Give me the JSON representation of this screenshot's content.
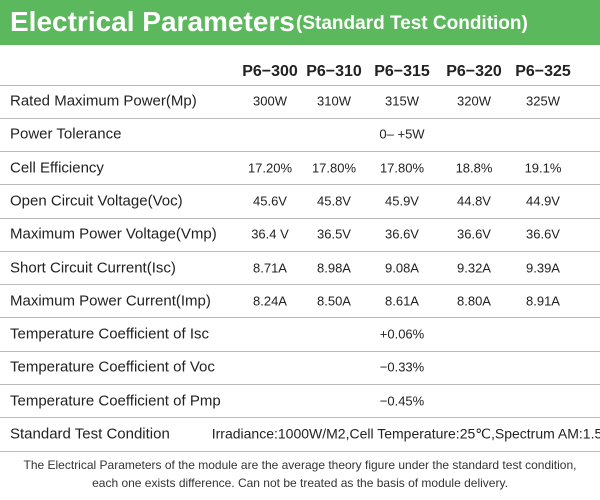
{
  "header": {
    "title": "Electrical Parameters",
    "subtitle": "(Standard Test Condition)"
  },
  "table": {
    "columns": [
      "P6−300",
      "P6−310",
      "P6−315",
      "P6−320",
      "P6−325"
    ],
    "rows": [
      {
        "label": "Rated Maximum Power(Mp)",
        "values": [
          "300W",
          "310W",
          "315W",
          "320W",
          "325W"
        ]
      },
      {
        "label": "Power Tolerance",
        "value": "0– +5W"
      },
      {
        "label": "Cell Efficiency",
        "values": [
          "17.20%",
          "17.80%",
          "17.80%",
          "18.8%",
          "19.1%"
        ]
      },
      {
        "label": "Open Circuit Voltage(Voc)",
        "values": [
          "45.6V",
          "45.8V",
          "45.9V",
          "44.8V",
          "44.9V"
        ]
      },
      {
        "label": "Maximum Power Voltage(Vmp)",
        "values": [
          "36.4 V",
          "36.5V",
          "36.6V",
          "36.6V",
          "36.6V"
        ]
      },
      {
        "label": "Short Circuit Current(Isc)",
        "values": [
          "8.71A",
          "8.98A",
          "9.08A",
          "9.32A",
          "9.39A"
        ]
      },
      {
        "label": "Maximum Power Current(Imp)",
        "values": [
          "8.24A",
          "8.50A",
          "8.61A",
          "8.80A",
          "8.91A"
        ]
      },
      {
        "label": "Temperature Coefficient of Isc",
        "value": "+0.06%"
      },
      {
        "label": "Temperature Coefficient of Voc",
        "value": "−0.33%"
      },
      {
        "label": "Temperature Coefficient of Pmp",
        "value": "−0.45%"
      },
      {
        "label": "Standard Test Condition",
        "value": "Irradiance:1000W/M2,Cell Temperature:25℃,Spectrum AM:1.5"
      }
    ]
  },
  "footnote": [
    "The Electrical Parameters of the module are the average theory figure under the standard test condition,",
    "each one exists difference. Can not be treated as the basis of module delivery."
  ]
}
